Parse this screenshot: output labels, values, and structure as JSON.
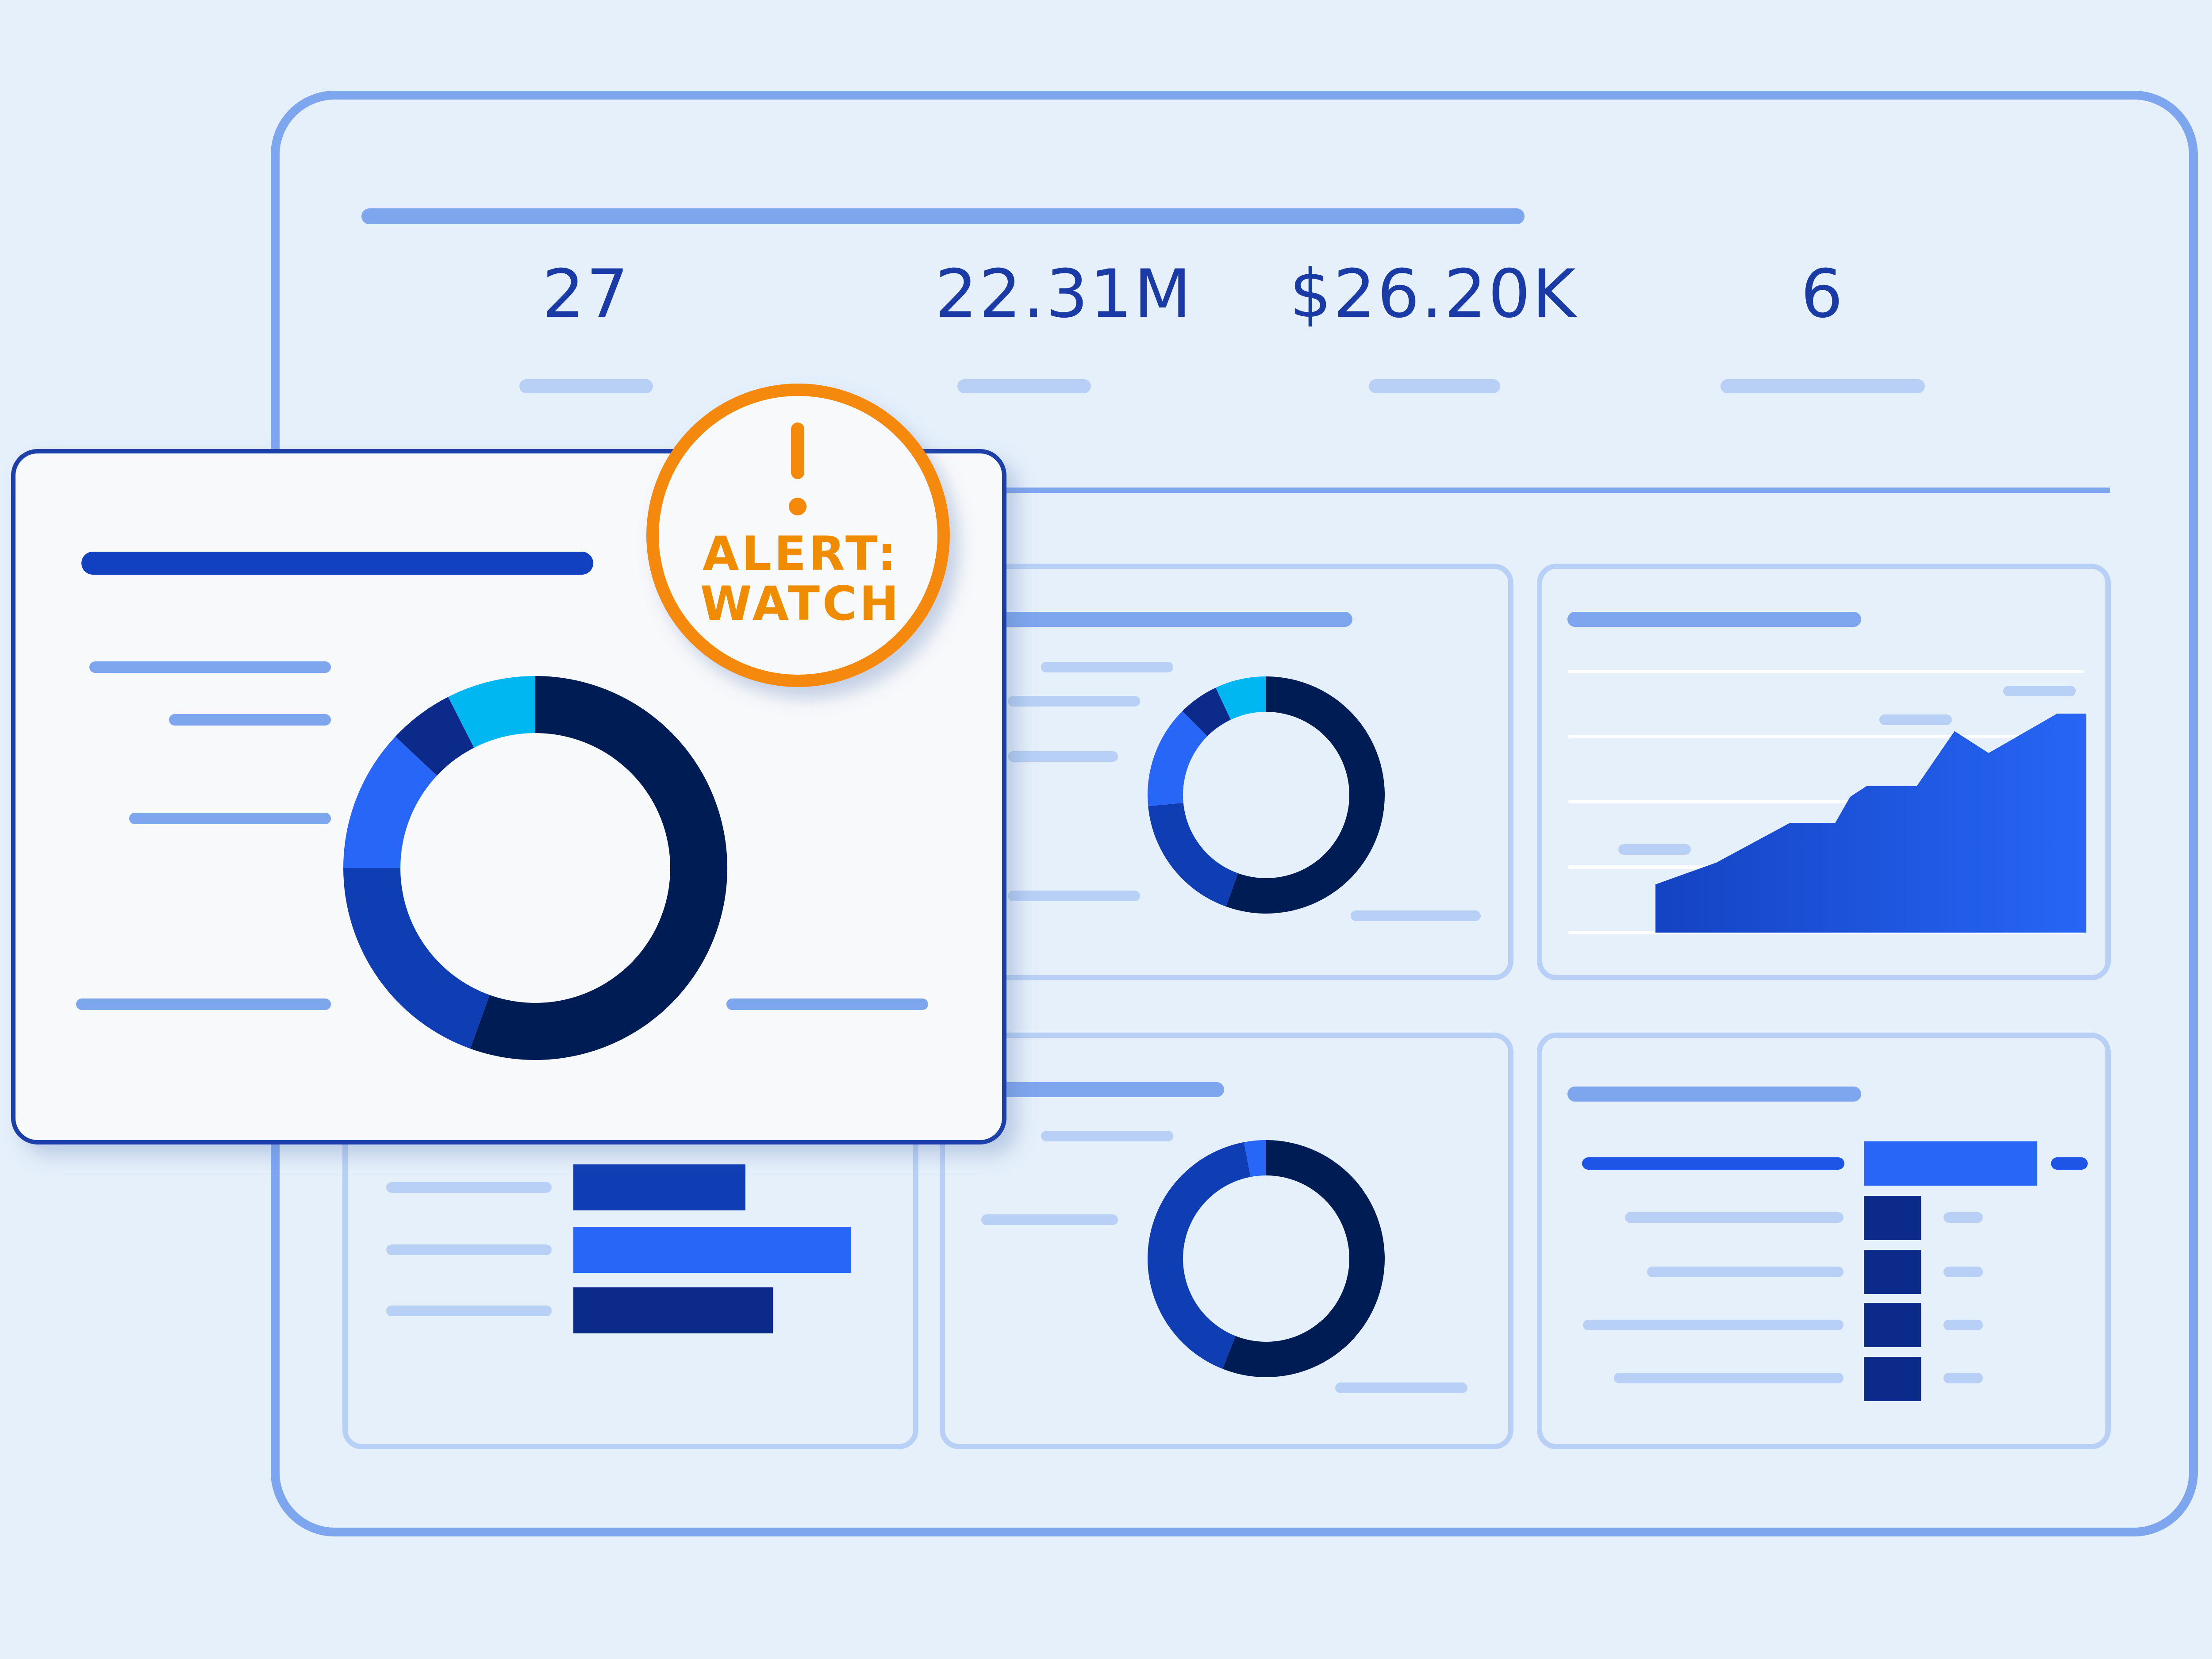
{
  "kpis": [
    {
      "value": "27"
    },
    {
      "value": "22.31M"
    },
    {
      "value": "$26.20K"
    },
    {
      "value": "6"
    }
  ],
  "alert": {
    "line1": "ALERT:",
    "line2": "WATCH",
    "icon": "exclamation-icon"
  },
  "colors": {
    "background": "#e6f0fb",
    "frame": "#7ea6ee",
    "accent_orange": "#f5890a",
    "kpi_text": "#1a3aa6",
    "navy": "#001c54",
    "dark_blue": "#0c2a8a",
    "mid_blue": "#0f3db3",
    "bright_blue": "#2766f6",
    "cyan": "#00b7f1"
  },
  "charts": {
    "front_donut": {
      "segments": [
        0.555,
        0.195,
        0.12,
        0.055,
        0.075
      ]
    },
    "mini_donut_top": {
      "segments": [
        0.555,
        0.18,
        0.14,
        0.055,
        0.07
      ]
    },
    "mini_donut_bottom": {
      "segments": [
        0.56,
        0.41,
        0.03
      ]
    },
    "area_chart": {
      "values": [
        0.22,
        0.32,
        0.5,
        0.5,
        0.62,
        0.67,
        0.67,
        0.92,
        0.82,
        1.0,
        1.0
      ]
    },
    "bar_chart_bottom_left": {
      "values": [
        0.62,
        1.0,
        0.72
      ]
    },
    "bar_chart_bottom_right": {
      "values": [
        1.0,
        0.33,
        0.33,
        0.33,
        0.33
      ]
    }
  }
}
